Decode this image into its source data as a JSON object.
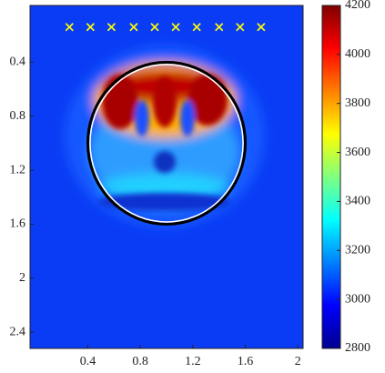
{
  "chart_data": {
    "type": "heatmap",
    "xlim": [
      -0.04,
      2.04
    ],
    "ylim": [
      -0.02,
      2.52
    ],
    "y_reversed": true,
    "xticks": [
      0.4,
      0.8,
      1.2,
      1.6,
      2
    ],
    "yticks": [
      0.4,
      0.8,
      1.2,
      1.6,
      2,
      2.4
    ],
    "colorbar": {
      "clim": [
        2800,
        4200
      ],
      "ticks": [
        2800,
        3000,
        3200,
        3400,
        3600,
        3800,
        4000,
        4200
      ]
    },
    "markers": {
      "x": [
        0.26,
        0.42,
        0.58,
        0.75,
        0.91,
        1.07,
        1.23,
        1.4,
        1.56,
        1.72
      ],
      "y": [
        0.14,
        0.14,
        0.14,
        0.14,
        0.14,
        0.14,
        0.14,
        0.14,
        0.14,
        0.14
      ],
      "color": "#ffff00"
    },
    "circle": {
      "cx": 1,
      "cy": 1,
      "r": 0.6
    }
  }
}
